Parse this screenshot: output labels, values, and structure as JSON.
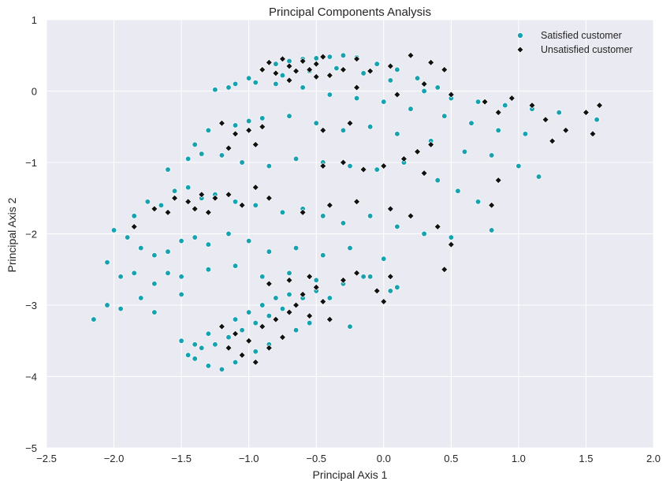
{
  "chart_data": {
    "type": "scatter",
    "title": "Principal Components Analysis",
    "xlabel": "Principal Axis 1",
    "ylabel": "Principal Axis 2",
    "xlim": [
      -2.5,
      2.0
    ],
    "ylim": [
      -5,
      1
    ],
    "xticks": [
      "−2.5",
      "−2.0",
      "−1.5",
      "−1.0",
      "−0.5",
      "0.0",
      "0.5",
      "1.0",
      "1.5",
      "2.0"
    ],
    "yticks": [
      "1",
      "0",
      "−1",
      "−2",
      "−3",
      "−4",
      "−5"
    ],
    "grid": true,
    "legend_position": "top-right",
    "series": [
      {
        "name": "Satisfied customer",
        "color": "#17a2b0",
        "marker": "circle",
        "points": [
          [
            -1.25,
            0.02
          ],
          [
            -1.1,
            0.1
          ],
          [
            -1.0,
            0.18
          ],
          [
            -0.9,
            0.3
          ],
          [
            -0.8,
            0.38
          ],
          [
            -0.7,
            0.42
          ],
          [
            -0.6,
            0.45
          ],
          [
            -0.5,
            0.46
          ],
          [
            -0.4,
            0.48
          ],
          [
            -0.3,
            0.5
          ],
          [
            -0.2,
            0.47
          ],
          [
            -0.05,
            0.38
          ],
          [
            0.1,
            0.3
          ],
          [
            0.25,
            0.18
          ],
          [
            0.4,
            0.05
          ],
          [
            -1.15,
            0.05
          ],
          [
            -0.95,
            0.12
          ],
          [
            -0.75,
            0.22
          ],
          [
            -0.55,
            0.28
          ],
          [
            -0.35,
            0.32
          ],
          [
            -0.15,
            0.25
          ],
          [
            0.05,
            0.15
          ],
          [
            0.3,
            0.0
          ],
          [
            0.5,
            -0.1
          ],
          [
            0.7,
            -0.15
          ],
          [
            0.9,
            -0.2
          ],
          [
            1.1,
            -0.25
          ],
          [
            1.3,
            -0.3
          ],
          [
            1.5,
            -0.3
          ],
          [
            1.58,
            -0.4
          ],
          [
            -0.8,
            0.1
          ],
          [
            -0.6,
            0.05
          ],
          [
            -0.4,
            -0.05
          ],
          [
            -0.2,
            -0.1
          ],
          [
            0.0,
            -0.15
          ],
          [
            0.2,
            -0.25
          ],
          [
            0.45,
            -0.35
          ],
          [
            0.65,
            -0.45
          ],
          [
            0.85,
            -0.55
          ],
          [
            1.05,
            -0.6
          ],
          [
            1.25,
            -0.7
          ],
          [
            -1.4,
            -0.75
          ],
          [
            -1.3,
            -0.55
          ],
          [
            -1.2,
            -0.45
          ],
          [
            -1.1,
            -0.48
          ],
          [
            -1.0,
            -0.42
          ],
          [
            -0.9,
            -0.38
          ],
          [
            -0.7,
            -0.35
          ],
          [
            -0.5,
            -0.45
          ],
          [
            -0.3,
            -0.55
          ],
          [
            -0.1,
            -0.5
          ],
          [
            0.1,
            -0.6
          ],
          [
            0.35,
            -0.7
          ],
          [
            0.6,
            -0.85
          ],
          [
            0.8,
            -0.9
          ],
          [
            1.0,
            -1.05
          ],
          [
            1.15,
            -1.2
          ],
          [
            -1.6,
            -1.1
          ],
          [
            -1.45,
            -0.95
          ],
          [
            -1.35,
            -0.88
          ],
          [
            -1.2,
            -0.9
          ],
          [
            -1.05,
            -1.0
          ],
          [
            -0.85,
            -1.05
          ],
          [
            -0.65,
            -0.95
          ],
          [
            -0.45,
            -1.0
          ],
          [
            -0.25,
            -1.05
          ],
          [
            -0.05,
            -1.1
          ],
          [
            0.15,
            -1.0
          ],
          [
            0.4,
            -1.25
          ],
          [
            0.55,
            -1.4
          ],
          [
            0.7,
            -1.55
          ],
          [
            -1.85,
            -1.75
          ],
          [
            -1.75,
            -1.55
          ],
          [
            -1.65,
            -1.6
          ],
          [
            -1.55,
            -1.4
          ],
          [
            -1.45,
            -1.35
          ],
          [
            -1.35,
            -1.5
          ],
          [
            -1.25,
            -1.45
          ],
          [
            -1.1,
            -1.55
          ],
          [
            -0.95,
            -1.6
          ],
          [
            -0.75,
            -1.7
          ],
          [
            -0.6,
            -1.65
          ],
          [
            -0.45,
            -1.75
          ],
          [
            -0.3,
            -1.85
          ],
          [
            -0.1,
            -1.75
          ],
          [
            0.1,
            -1.9
          ],
          [
            0.3,
            -2.0
          ],
          [
            0.5,
            -2.05
          ],
          [
            0.8,
            -1.95
          ],
          [
            -2.0,
            -1.95
          ],
          [
            -1.9,
            -2.05
          ],
          [
            -1.8,
            -2.2
          ],
          [
            -1.7,
            -2.3
          ],
          [
            -1.6,
            -2.25
          ],
          [
            -1.5,
            -2.1
          ],
          [
            -1.4,
            -2.05
          ],
          [
            -1.3,
            -2.15
          ],
          [
            -1.15,
            -2.0
          ],
          [
            -1.0,
            -2.1
          ],
          [
            -0.85,
            -2.25
          ],
          [
            -0.65,
            -2.2
          ],
          [
            -0.45,
            -2.3
          ],
          [
            -0.25,
            -2.2
          ],
          [
            0.0,
            -2.35
          ],
          [
            -2.05,
            -2.4
          ],
          [
            -1.95,
            -2.6
          ],
          [
            -1.85,
            -2.55
          ],
          [
            -1.7,
            -2.7
          ],
          [
            -1.6,
            -2.55
          ],
          [
            -1.5,
            -2.6
          ],
          [
            -1.3,
            -2.5
          ],
          [
            -1.1,
            -2.45
          ],
          [
            -0.9,
            -2.6
          ],
          [
            -0.7,
            -2.55
          ],
          [
            -0.5,
            -2.65
          ],
          [
            -0.3,
            -2.7
          ],
          [
            -0.1,
            -2.6
          ],
          [
            0.1,
            -2.75
          ],
          [
            -2.15,
            -3.2
          ],
          [
            -2.05,
            -3.0
          ],
          [
            -1.95,
            -3.05
          ],
          [
            -1.8,
            -2.9
          ],
          [
            -1.7,
            -3.1
          ],
          [
            -1.5,
            -2.85
          ],
          [
            -1.5,
            -3.5
          ],
          [
            -1.45,
            -3.7
          ],
          [
            -1.4,
            -3.55
          ],
          [
            -1.35,
            -3.6
          ],
          [
            -1.3,
            -3.4
          ],
          [
            -1.25,
            -3.55
          ],
          [
            -1.2,
            -3.3
          ],
          [
            -1.15,
            -3.45
          ],
          [
            -1.1,
            -3.2
          ],
          [
            -1.05,
            -3.35
          ],
          [
            -1.0,
            -3.1
          ],
          [
            -0.95,
            -3.25
          ],
          [
            -0.9,
            -3.0
          ],
          [
            -0.85,
            -3.15
          ],
          [
            -0.8,
            -2.9
          ],
          [
            -0.75,
            -3.05
          ],
          [
            -0.7,
            -2.85
          ],
          [
            -0.6,
            -2.9
          ],
          [
            -0.5,
            -2.8
          ],
          [
            -0.4,
            -2.9
          ],
          [
            -0.3,
            -2.7
          ],
          [
            -0.25,
            -3.3
          ],
          [
            -0.15,
            -2.6
          ],
          [
            0.05,
            -2.8
          ],
          [
            -1.4,
            -3.75
          ],
          [
            -1.3,
            -3.85
          ],
          [
            -1.2,
            -3.9
          ],
          [
            -1.1,
            -3.8
          ],
          [
            -1.05,
            -3.7
          ],
          [
            -0.95,
            -3.65
          ],
          [
            -0.85,
            -3.55
          ],
          [
            -0.75,
            -3.45
          ],
          [
            -0.65,
            -3.35
          ],
          [
            -0.55,
            -3.25
          ]
        ]
      },
      {
        "name": "Unsatisfied customer",
        "color": "#111111",
        "marker": "diamond",
        "points": [
          [
            -0.9,
            0.3
          ],
          [
            -0.85,
            0.4
          ],
          [
            -0.8,
            0.25
          ],
          [
            -0.75,
            0.45
          ],
          [
            -0.7,
            0.35
          ],
          [
            -0.65,
            0.28
          ],
          [
            -0.6,
            0.42
          ],
          [
            -0.55,
            0.3
          ],
          [
            -0.5,
            0.38
          ],
          [
            -0.45,
            0.48
          ],
          [
            -0.4,
            0.22
          ],
          [
            -0.3,
            0.3
          ],
          [
            -0.2,
            0.45
          ],
          [
            -0.1,
            0.28
          ],
          [
            0.05,
            0.35
          ],
          [
            0.2,
            0.5
          ],
          [
            0.35,
            0.4
          ],
          [
            0.45,
            0.3
          ],
          [
            -0.7,
            0.15
          ],
          [
            -0.5,
            0.2
          ],
          [
            -0.2,
            0.05
          ],
          [
            0.1,
            -0.05
          ],
          [
            0.3,
            0.1
          ],
          [
            0.5,
            -0.05
          ],
          [
            0.75,
            -0.15
          ],
          [
            0.85,
            -0.3
          ],
          [
            0.95,
            -0.1
          ],
          [
            1.1,
            -0.2
          ],
          [
            1.2,
            -0.4
          ],
          [
            1.25,
            -0.7
          ],
          [
            1.35,
            -0.55
          ],
          [
            1.5,
            -0.3
          ],
          [
            1.55,
            -0.6
          ],
          [
            1.6,
            -0.2
          ],
          [
            -1.2,
            -0.45
          ],
          [
            -1.1,
            -0.6
          ],
          [
            -1.0,
            -0.55
          ],
          [
            -0.9,
            -0.5
          ],
          [
            -1.15,
            -0.8
          ],
          [
            -0.95,
            -0.75
          ],
          [
            -0.45,
            -0.55
          ],
          [
            -0.25,
            -0.45
          ],
          [
            -0.45,
            -1.05
          ],
          [
            -0.3,
            -1.0
          ],
          [
            -0.15,
            -1.1
          ],
          [
            0.0,
            -1.05
          ],
          [
            0.15,
            -0.95
          ],
          [
            0.25,
            -0.85
          ],
          [
            0.35,
            -0.75
          ],
          [
            0.3,
            -1.15
          ],
          [
            -1.85,
            -1.9
          ],
          [
            -1.7,
            -1.65
          ],
          [
            -1.6,
            -1.7
          ],
          [
            -1.55,
            -1.5
          ],
          [
            -1.45,
            -1.55
          ],
          [
            -1.4,
            -1.65
          ],
          [
            -1.35,
            -1.45
          ],
          [
            -1.3,
            -1.7
          ],
          [
            -1.25,
            -1.5
          ],
          [
            -1.15,
            -1.45
          ],
          [
            -1.05,
            -1.6
          ],
          [
            -0.95,
            -1.35
          ],
          [
            -0.85,
            -1.5
          ],
          [
            -0.6,
            -1.7
          ],
          [
            -0.4,
            -1.6
          ],
          [
            -0.2,
            -1.55
          ],
          [
            0.05,
            -1.65
          ],
          [
            0.2,
            -1.75
          ],
          [
            0.4,
            -1.9
          ],
          [
            0.5,
            -2.15
          ],
          [
            0.45,
            -2.5
          ],
          [
            0.8,
            -1.6
          ],
          [
            0.85,
            -1.25
          ],
          [
            -1.2,
            -3.3
          ],
          [
            -1.15,
            -3.6
          ],
          [
            -1.1,
            -3.4
          ],
          [
            -1.05,
            -3.7
          ],
          [
            -1.0,
            -3.5
          ],
          [
            -0.95,
            -3.8
          ],
          [
            -0.9,
            -3.3
          ],
          [
            -0.85,
            -3.6
          ],
          [
            -0.8,
            -3.2
          ],
          [
            -0.75,
            -3.45
          ],
          [
            -0.7,
            -3.1
          ],
          [
            -0.65,
            -3.0
          ],
          [
            -0.6,
            -2.85
          ],
          [
            -0.55,
            -3.15
          ],
          [
            -0.5,
            -2.75
          ],
          [
            -0.45,
            -2.95
          ],
          [
            -0.4,
            -3.2
          ],
          [
            -0.3,
            -2.65
          ],
          [
            -0.2,
            -2.55
          ],
          [
            -0.05,
            -2.8
          ],
          [
            0.05,
            -2.6
          ],
          [
            0.0,
            -2.95
          ],
          [
            -0.85,
            -2.7
          ],
          [
            -0.7,
            -2.65
          ],
          [
            -0.55,
            -2.6
          ]
        ]
      }
    ]
  }
}
